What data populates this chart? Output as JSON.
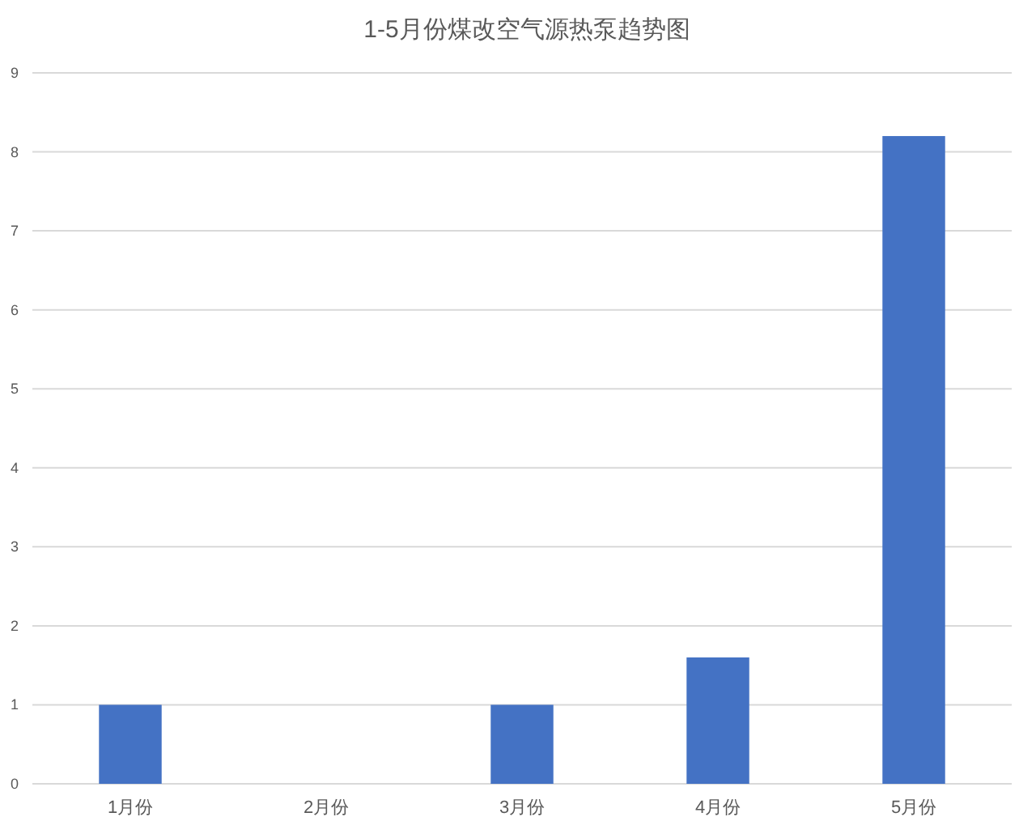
{
  "chart_data": {
    "type": "bar",
    "title": "1-5月份煤改空气源热泵趋势图",
    "categories": [
      "1月份",
      "2月份",
      "3月份",
      "4月份",
      "5月份"
    ],
    "values": [
      1,
      0,
      1,
      1.6,
      8.2
    ],
    "color": "#4472c4",
    "ylim": [
      0,
      9
    ],
    "yticks": [
      0,
      1,
      2,
      3,
      4,
      5,
      6,
      7,
      8,
      9
    ],
    "grid": "y"
  }
}
